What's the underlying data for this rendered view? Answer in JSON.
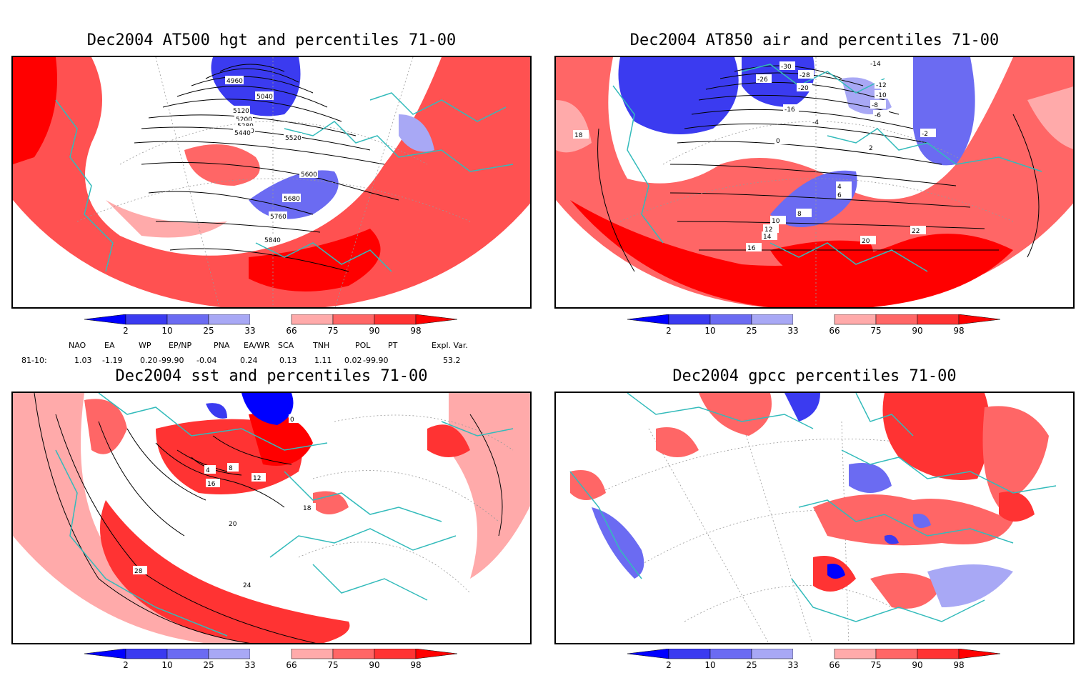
{
  "panels": [
    {
      "title": "Dec2004 AT500 hgt and percentiles 71-00",
      "contour_labels": [
        "4960",
        "5040",
        "5120",
        "5200",
        "5280",
        "5360",
        "5440",
        "5520",
        "5600",
        "5680",
        "5760",
        "5840"
      ]
    },
    {
      "title": "Dec2004 AT850 air and percentiles 71-00",
      "contour_labels": [
        "-30",
        "-28",
        "-26",
        "-20",
        "-16",
        "-14",
        "-12",
        "-10",
        "-8",
        "-6",
        "-4",
        "-2",
        "0",
        "2",
        "4",
        "6",
        "8",
        "10",
        "12",
        "14",
        "16",
        "18",
        "20",
        "22"
      ]
    },
    {
      "title": "Dec2004 sst and percentiles 71-00",
      "contour_labels": [
        "0",
        "4",
        "8",
        "12",
        "16",
        "18",
        "20",
        "24",
        "28"
      ]
    },
    {
      "title": "Dec2004 gpcc percentiles 71-00",
      "contour_labels": []
    }
  ],
  "colorbar": {
    "ticks": [
      "2",
      "10",
      "25",
      "33",
      "66",
      "75",
      "90",
      "98"
    ],
    "colors": {
      "below_2": "#0000ff",
      "2_10": "#3b3bf0",
      "10_25": "#6b6bf2",
      "25_33": "#a8a8f5",
      "33_66": "#ffffff",
      "66_75": "#ffaaaa",
      "75_90": "#ff6666",
      "90_98": "#ff3333",
      "above_98": "#ff0000"
    }
  },
  "indices": {
    "headers": [
      "NAO",
      "EA",
      "WP",
      "EP/NP",
      "PNA",
      "EA/WR",
      "SCA",
      "TNH",
      "POL",
      "PT",
      "Expl. Var."
    ],
    "row_label": "81-10:",
    "values": [
      "1.03",
      "-1.19",
      "0.20",
      "-99.90",
      "-0.04",
      "0.24",
      "0.13",
      "1.11",
      "0.02",
      "-99.90",
      "53.2"
    ]
  },
  "colors": {
    "coastline": "#33bbbb",
    "grid": "#999999",
    "contour": "#000000"
  }
}
